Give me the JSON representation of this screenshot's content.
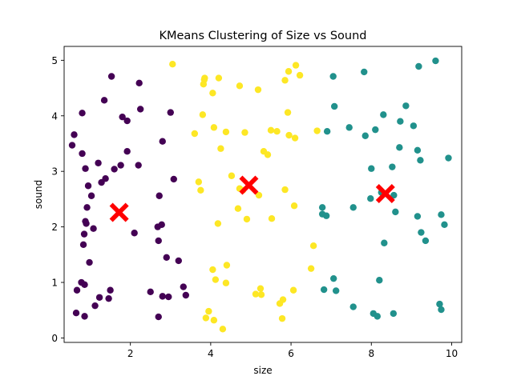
{
  "chart_data": {
    "type": "scatter",
    "title": "KMeans Clustering of Size vs Sound",
    "xlabel": "size",
    "ylabel": "sound",
    "xlim": [
      0.35,
      10.25
    ],
    "ylim": [
      -0.08,
      5.25
    ],
    "xticks": [
      2,
      4,
      6,
      8,
      10
    ],
    "yticks": [
      0,
      1,
      2,
      3,
      4,
      5
    ],
    "grid": false,
    "legend": "none",
    "cluster_colors": [
      "#440154",
      "#fde725",
      "#21918c"
    ],
    "centroid_color": "#ff0000",
    "series": [
      {
        "cluster": 0,
        "points": [
          [
            0.55,
            3.47
          ],
          [
            0.6,
            3.66
          ],
          [
            0.65,
            0.45
          ],
          [
            0.67,
            0.86
          ],
          [
            0.78,
            1.0
          ],
          [
            0.8,
            4.05
          ],
          [
            0.8,
            3.32
          ],
          [
            0.83,
            1.68
          ],
          [
            0.85,
            1.87
          ],
          [
            0.86,
            0.96
          ],
          [
            0.86,
            0.39
          ],
          [
            0.88,
            3.05
          ],
          [
            0.88,
            2.1
          ],
          [
            0.9,
            2.06
          ],
          [
            0.92,
            2.35
          ],
          [
            0.95,
            2.74
          ],
          [
            0.98,
            1.36
          ],
          [
            1.03,
            2.56
          ],
          [
            1.08,
            1.97
          ],
          [
            1.12,
            0.58
          ],
          [
            1.2,
            3.15
          ],
          [
            1.23,
            0.73
          ],
          [
            1.28,
            2.8
          ],
          [
            1.35,
            4.28
          ],
          [
            1.38,
            2.87
          ],
          [
            1.46,
            0.71
          ],
          [
            1.5,
            0.86
          ],
          [
            1.53,
            4.71
          ],
          [
            1.6,
            3.04
          ],
          [
            1.76,
            3.11
          ],
          [
            1.8,
            3.98
          ],
          [
            1.92,
            3.91
          ],
          [
            1.92,
            3.36
          ],
          [
            2.1,
            1.89
          ],
          [
            2.2,
            3.11
          ],
          [
            2.22,
            4.59
          ],
          [
            2.25,
            4.12
          ],
          [
            2.5,
            0.83
          ],
          [
            2.68,
            2.0
          ],
          [
            2.7,
            1.75
          ],
          [
            2.7,
            0.38
          ],
          [
            2.72,
            2.56
          ],
          [
            2.78,
            2.04
          ],
          [
            2.8,
            3.54
          ],
          [
            2.8,
            0.75
          ],
          [
            2.9,
            1.45
          ],
          [
            2.95,
            0.74
          ],
          [
            3.0,
            4.06
          ],
          [
            3.08,
            2.86
          ],
          [
            3.2,
            1.39
          ],
          [
            3.32,
            0.92
          ],
          [
            3.38,
            0.77
          ]
        ]
      },
      {
        "cluster": 1,
        "points": [
          [
            3.05,
            4.93
          ],
          [
            3.6,
            3.68
          ],
          [
            3.7,
            2.81
          ],
          [
            3.75,
            2.66
          ],
          [
            3.8,
            4.02
          ],
          [
            3.82,
            4.57
          ],
          [
            3.84,
            4.65
          ],
          [
            3.85,
            4.68
          ],
          [
            3.88,
            0.36
          ],
          [
            3.95,
            0.48
          ],
          [
            4.05,
            4.41
          ],
          [
            4.05,
            1.23
          ],
          [
            4.08,
            3.79
          ],
          [
            4.08,
            0.32
          ],
          [
            4.12,
            1.05
          ],
          [
            4.18,
            2.06
          ],
          [
            4.2,
            4.68
          ],
          [
            4.25,
            3.41
          ],
          [
            4.3,
            0.16
          ],
          [
            4.38,
            3.71
          ],
          [
            4.38,
            0.99
          ],
          [
            4.4,
            1.31
          ],
          [
            4.52,
            2.92
          ],
          [
            4.68,
            2.33
          ],
          [
            4.72,
            4.54
          ],
          [
            4.72,
            2.69
          ],
          [
            4.8,
            2.66
          ],
          [
            4.85,
            3.7
          ],
          [
            4.9,
            2.14
          ],
          [
            5.12,
            0.79
          ],
          [
            5.18,
            4.47
          ],
          [
            5.2,
            2.57
          ],
          [
            5.24,
            0.89
          ],
          [
            5.26,
            0.78
          ],
          [
            5.32,
            3.36
          ],
          [
            5.42,
            3.3
          ],
          [
            5.5,
            3.74
          ],
          [
            5.52,
            2.15
          ],
          [
            5.65,
            3.72
          ],
          [
            5.72,
            0.62
          ],
          [
            5.78,
            0.35
          ],
          [
            5.8,
            0.69
          ],
          [
            5.85,
            2.67
          ],
          [
            5.85,
            4.64
          ],
          [
            5.92,
            4.06
          ],
          [
            5.94,
            4.8
          ],
          [
            5.95,
            3.65
          ],
          [
            6.06,
            0.86
          ],
          [
            6.08,
            2.38
          ],
          [
            6.1,
            3.6
          ],
          [
            6.12,
            4.91
          ],
          [
            6.22,
            4.73
          ],
          [
            6.5,
            1.25
          ],
          [
            6.56,
            1.66
          ],
          [
            6.65,
            3.73
          ]
        ]
      },
      {
        "cluster": 2,
        "points": [
          [
            6.78,
            2.35
          ],
          [
            6.78,
            2.23
          ],
          [
            6.82,
            0.87
          ],
          [
            6.88,
            2.2
          ],
          [
            6.9,
            3.72
          ],
          [
            7.05,
            4.71
          ],
          [
            7.06,
            1.07
          ],
          [
            7.08,
            4.17
          ],
          [
            7.12,
            0.85
          ],
          [
            7.45,
            3.79
          ],
          [
            7.55,
            2.35
          ],
          [
            7.55,
            0.56
          ],
          [
            7.82,
            4.79
          ],
          [
            7.85,
            3.64
          ],
          [
            7.98,
            2.51
          ],
          [
            8.0,
            3.05
          ],
          [
            8.05,
            0.44
          ],
          [
            8.1,
            3.75
          ],
          [
            8.15,
            0.39
          ],
          [
            8.2,
            1.04
          ],
          [
            8.25,
            2.62
          ],
          [
            8.3,
            4.02
          ],
          [
            8.32,
            1.71
          ],
          [
            8.52,
            3.08
          ],
          [
            8.55,
            0.44
          ],
          [
            8.56,
            2.57
          ],
          [
            8.6,
            2.27
          ],
          [
            8.7,
            3.43
          ],
          [
            8.72,
            3.9
          ],
          [
            8.86,
            4.18
          ],
          [
            9.05,
            3.82
          ],
          [
            9.15,
            3.38
          ],
          [
            9.15,
            2.19
          ],
          [
            9.18,
            4.89
          ],
          [
            9.22,
            3.2
          ],
          [
            9.24,
            1.9
          ],
          [
            9.35,
            1.75
          ],
          [
            9.6,
            4.99
          ],
          [
            9.7,
            0.61
          ],
          [
            9.74,
            2.22
          ],
          [
            9.74,
            0.51
          ],
          [
            9.82,
            2.04
          ],
          [
            9.92,
            3.24
          ]
        ]
      }
    ],
    "centroids": [
      [
        1.72,
        2.26
      ],
      [
        4.95,
        2.75
      ],
      [
        8.35,
        2.6
      ]
    ]
  }
}
